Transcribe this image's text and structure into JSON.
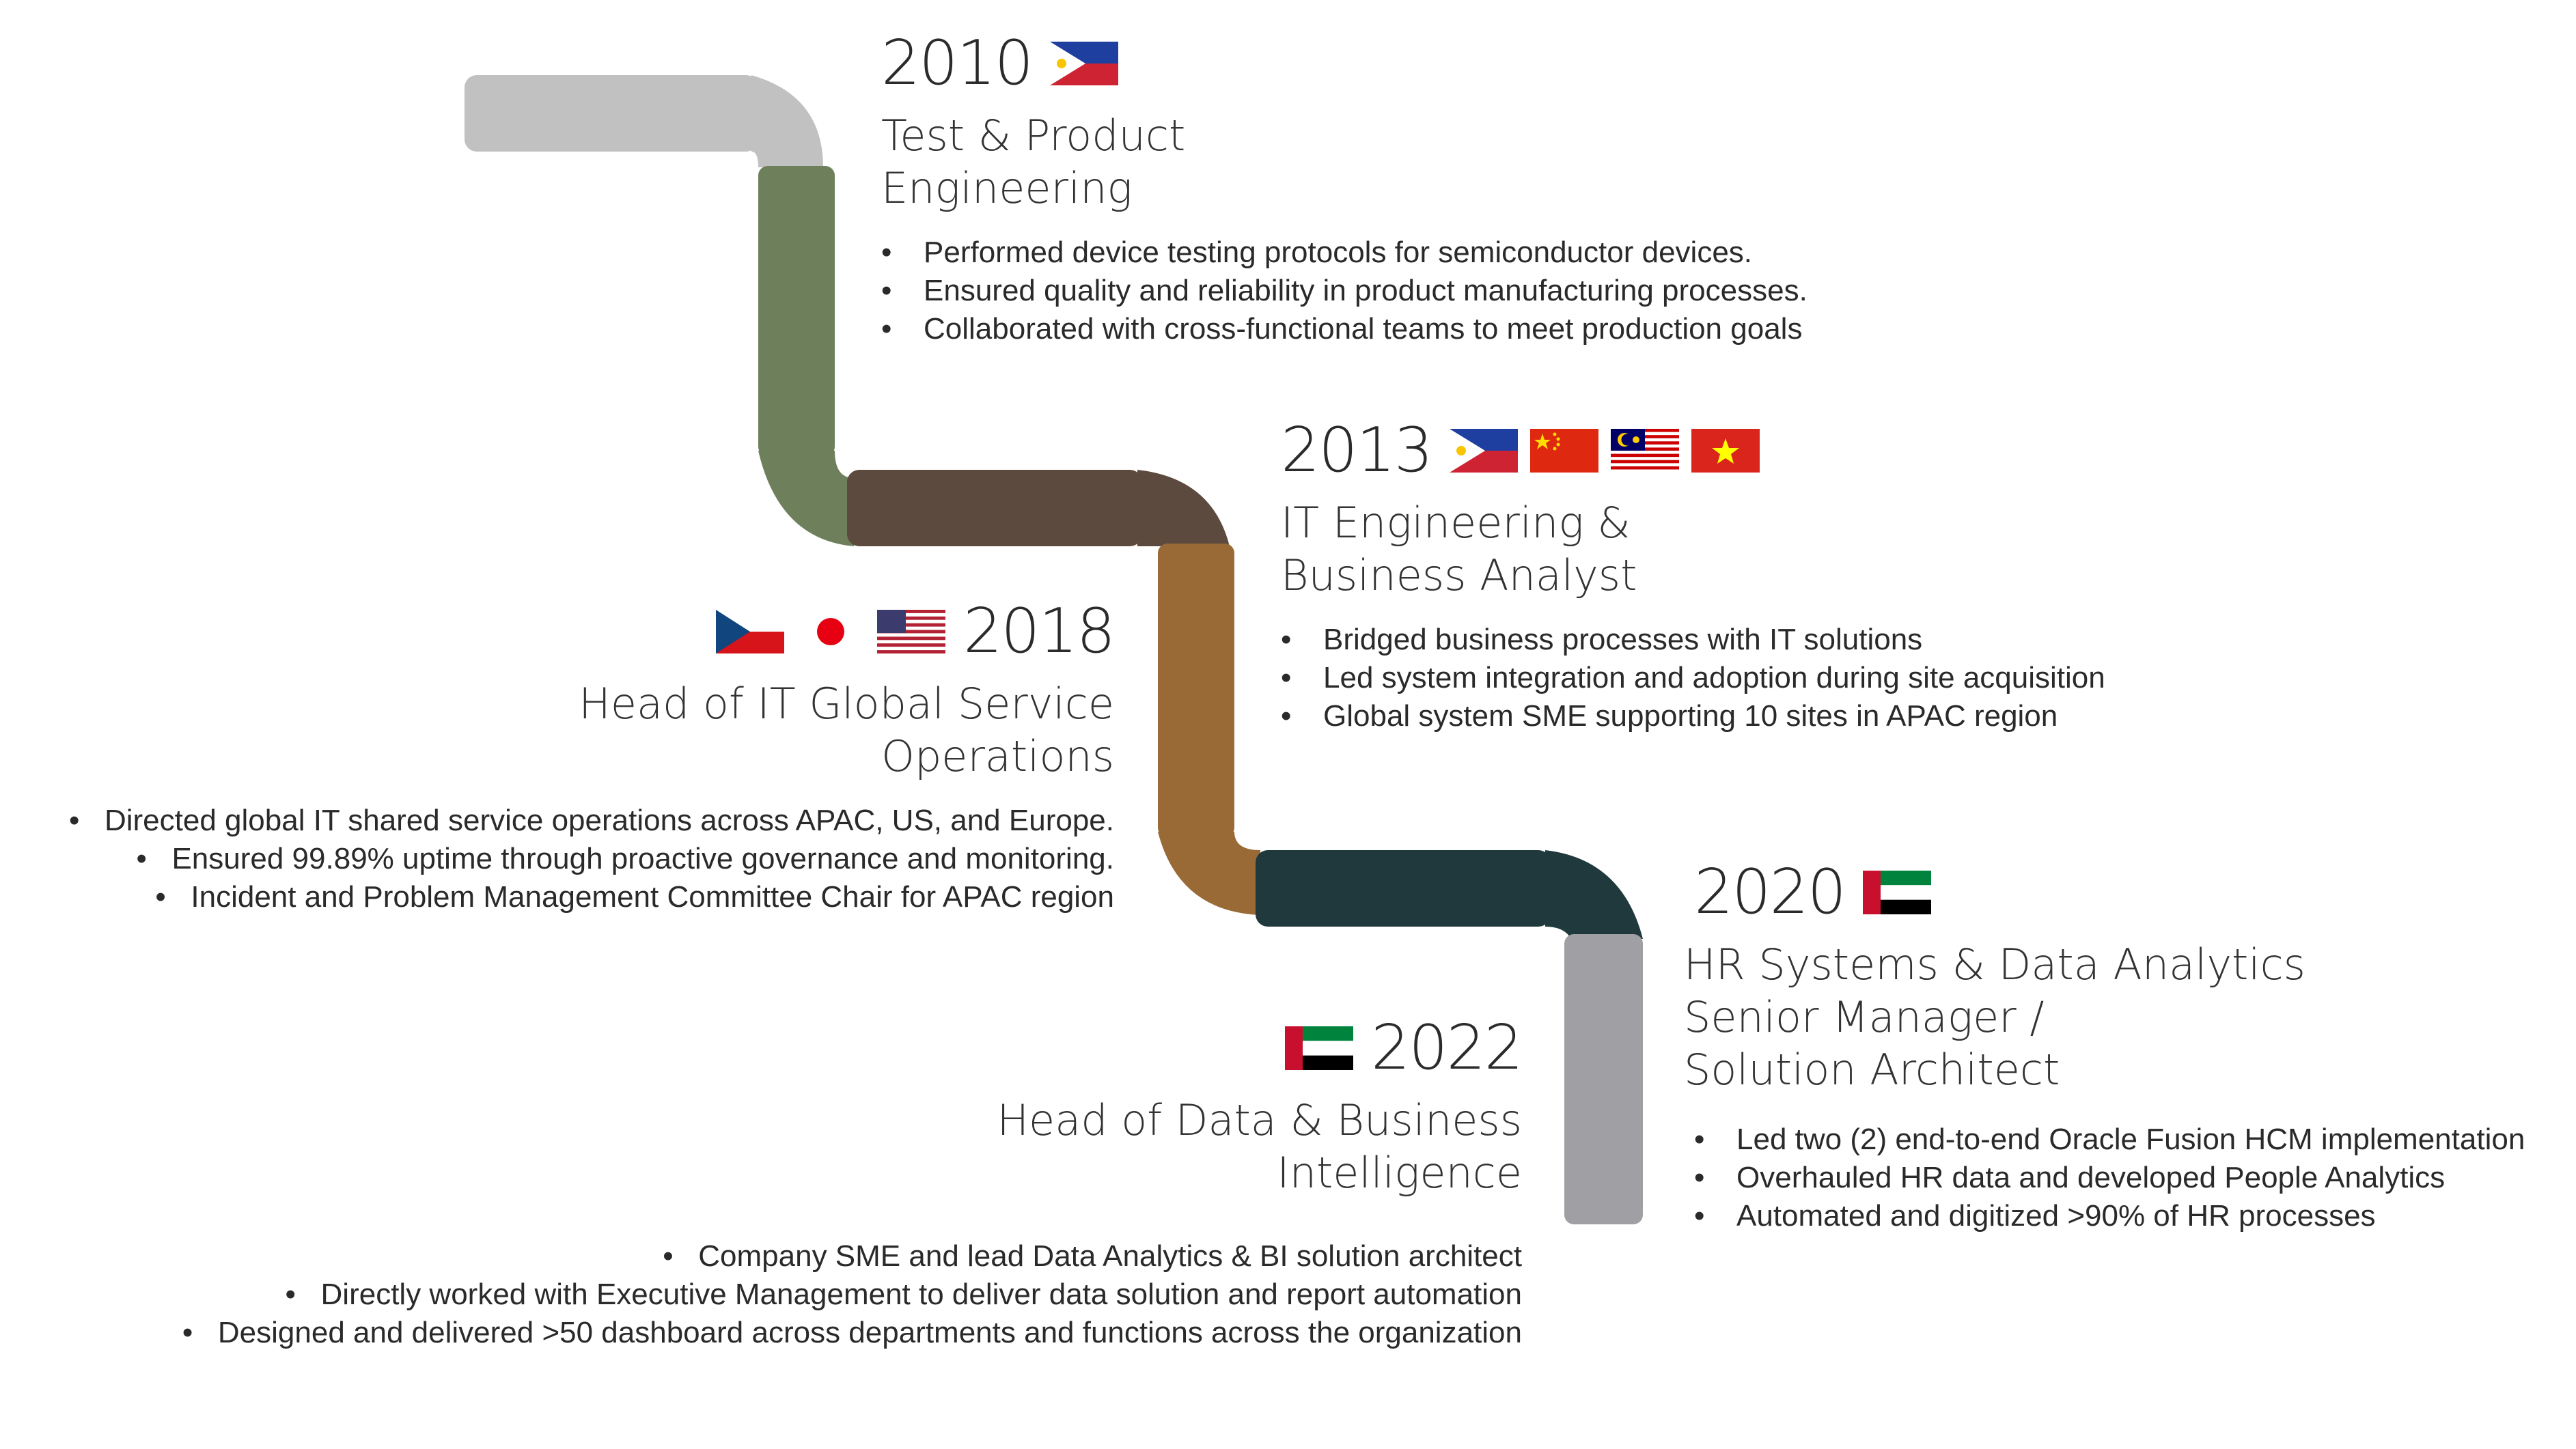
{
  "colors": {
    "segment_start": "#c1c1c1",
    "segment_2010": "#6e7f5b",
    "segment_2013": "#5c4a3e",
    "segment_2018": "#9a6a36",
    "segment_2020": "#1f393d",
    "segment_end": "#a0a0a4"
  },
  "milestones": [
    {
      "year": "2010",
      "flags": [
        "philippines-flag-icon"
      ],
      "title_lines": [
        "Test & Product",
        "Engineering"
      ],
      "bullets": [
        "Performed device testing protocols for semiconductor devices.",
        "Ensured quality and reliability in product manufacturing processes.",
        "Collaborated with cross-functional teams to meet production goals"
      ]
    },
    {
      "year": "2013",
      "flags": [
        "philippines-flag-icon",
        "china-flag-icon",
        "malaysia-flag-icon",
        "vietnam-flag-icon"
      ],
      "title_lines": [
        "IT Engineering &",
        "Business Analyst"
      ],
      "bullets": [
        "Bridged business processes with IT solutions",
        "Led system integration and adoption during site acquisition",
        "Global system SME supporting 10 sites in APAC region"
      ]
    },
    {
      "year": "2018",
      "flags": [
        "czech-flag-icon",
        "japan-flag-icon",
        "usa-flag-icon"
      ],
      "title_lines": [
        "Head of IT Global Service",
        "Operations"
      ],
      "bullets": [
        "Directed global IT shared service operations across APAC, US, and Europe.",
        "Ensured 99.89% uptime through proactive governance and monitoring.",
        "Incident and Problem Management Committee Chair for APAC region"
      ]
    },
    {
      "year": "2020",
      "flags": [
        "uae-flag-icon"
      ],
      "title_lines": [
        "HR Systems & Data Analytics",
        "Senior Manager /",
        "Solution Architect"
      ],
      "bullets": [
        "Led two (2) end-to-end Oracle Fusion HCM implementation",
        "Overhauled HR data and developed People Analytics",
        "Automated and digitized >90% of HR processes"
      ]
    },
    {
      "year": "2022",
      "flags": [
        "uae-flag-icon"
      ],
      "title_lines": [
        "Head of Data & Business",
        "Intelligence"
      ],
      "bullets": [
        "Company SME and lead Data Analytics & BI solution architect",
        "Directly worked with Executive Management to deliver data solution and report automation",
        "Designed and delivered >50 dashboard across departments and functions across the organization"
      ]
    }
  ]
}
